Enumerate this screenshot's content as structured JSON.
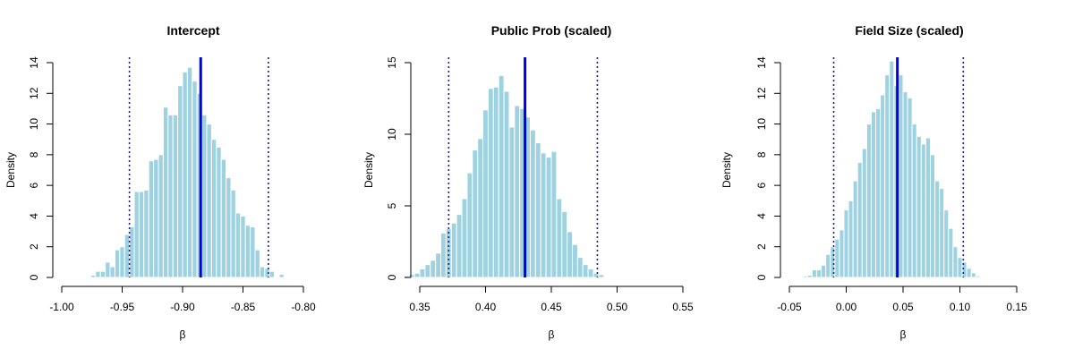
{
  "chart_data": [
    {
      "type": "histogram",
      "title": "Intercept",
      "xlabel": "β",
      "ylabel": "Density",
      "xlim": [
        -1.0,
        -0.8
      ],
      "ylim": [
        0,
        14
      ],
      "x_ticks": [
        "-1.00",
        "-0.95",
        "-0.90",
        "-0.85",
        "-0.80"
      ],
      "x_tick_values": [
        -1.0,
        -0.95,
        -0.9,
        -0.85,
        -0.8
      ],
      "y_ticks": [
        "0",
        "2",
        "4",
        "6",
        "8",
        "10",
        "12",
        "14"
      ],
      "y_tick_values": [
        0,
        2,
        4,
        6,
        8,
        10,
        12,
        14
      ],
      "bin_start": -0.976,
      "bin_width": 0.004,
      "densities": [
        0.15,
        0.4,
        0.4,
        1.0,
        0.7,
        1.8,
        2.0,
        2.8,
        3.3,
        5.6,
        5.6,
        5.7,
        7.6,
        7.7,
        8.0,
        11.1,
        10.6,
        10.6,
        12.5,
        13.4,
        13.7,
        12.8,
        12.0,
        10.6,
        10.0,
        9.0,
        8.5,
        7.7,
        6.5,
        5.7,
        4.2,
        4.0,
        3.4,
        3.3,
        1.8,
        0.7,
        0.6,
        0.4,
        0,
        0.2
      ],
      "mean": -0.885,
      "ci": [
        -0.944,
        -0.829
      ],
      "colors": {
        "bars": "#9fd2e1",
        "bar_edge": "#ffffff",
        "mean_line": "#0000e0",
        "ci_line": "#1c1c9c"
      }
    },
    {
      "type": "histogram",
      "title": "Public Prob (scaled)",
      "xlabel": "β",
      "ylabel": "Density",
      "xlim": [
        0.35,
        0.55
      ],
      "ylim": [
        0,
        15
      ],
      "x_ticks": [
        "0.35",
        "0.40",
        "0.45",
        "0.50",
        "0.55"
      ],
      "x_tick_values": [
        0.35,
        0.4,
        0.45,
        0.5,
        0.55
      ],
      "y_ticks": [
        "0",
        "5",
        "10",
        "15"
      ],
      "y_tick_values": [
        0,
        5,
        10,
        15
      ],
      "bin_start": 0.338,
      "bin_width": 0.004,
      "densities": [
        0.1,
        0.2,
        0.3,
        0.6,
        0.9,
        1.2,
        1.7,
        3.1,
        3.4,
        3.8,
        4.4,
        5.5,
        7.3,
        8.9,
        9.7,
        11.7,
        13.2,
        13.3,
        14.1,
        13.0,
        10.5,
        12.0,
        11.8,
        11.2,
        10.3,
        9.4,
        8.7,
        8.4,
        8.8,
        5.5,
        4.6,
        3.2,
        2.3,
        1.4,
        0.9,
        0.6,
        0.3,
        0.2,
        0,
        0,
        0,
        0.05
      ],
      "mean": 0.43,
      "ci": [
        0.372,
        0.485
      ],
      "colors": {
        "bars": "#9fd2e1",
        "bar_edge": "#ffffff",
        "mean_line": "#0000e0",
        "ci_line": "#1c1c9c"
      }
    },
    {
      "type": "histogram",
      "title": "Field Size (scaled)",
      "xlabel": "β",
      "ylabel": "Density",
      "xlim": [
        -0.05,
        0.15
      ],
      "ylim": [
        0,
        14
      ],
      "x_ticks": [
        "-0.05",
        "0.00",
        "0.05",
        "0.10",
        "0.15"
      ],
      "x_tick_values": [
        -0.05,
        0.0,
        0.05,
        0.1,
        0.15
      ],
      "y_ticks": [
        "0",
        "2",
        "4",
        "6",
        "8",
        "10",
        "12",
        "14"
      ],
      "y_tick_values": [
        0,
        2,
        4,
        6,
        8,
        10,
        12,
        14
      ],
      "bin_start": -0.046,
      "bin_width": 0.004,
      "densities": [
        0.05,
        0,
        0.1,
        0.15,
        0.5,
        0.5,
        0.8,
        1.5,
        2.0,
        2.5,
        3.1,
        4.4,
        5.0,
        6.3,
        7.5,
        8.4,
        10.0,
        10.8,
        11.0,
        11.9,
        13.2,
        14.1,
        12.5,
        13.2,
        12.1,
        11.7,
        10.0,
        9.2,
        8.7,
        9.1,
        8.0,
        6.3,
        5.8,
        4.4,
        3.2,
        2.0,
        1.3,
        1.0,
        0.6,
        0.3,
        0.1,
        0.05,
        0.05,
        0.05
      ],
      "mean": 0.045,
      "ci": [
        -0.011,
        0.103
      ],
      "colors": {
        "bars": "#9fd2e1",
        "bar_edge": "#ffffff",
        "mean_line": "#0000e0",
        "ci_line": "#1c1c9c"
      }
    }
  ]
}
